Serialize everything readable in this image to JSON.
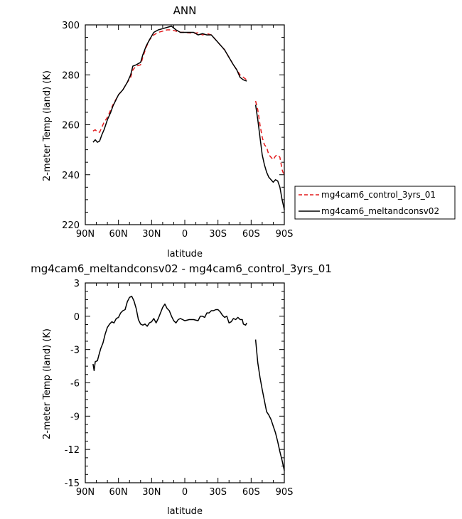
{
  "chart_data": [
    {
      "type": "line",
      "title": "ANN",
      "xlabel": "latitude",
      "ylabel": "2-meter Temp (land) (K)",
      "xlim": [
        90,
        -90
      ],
      "ylim": [
        220,
        300
      ],
      "xticks": [
        90,
        60,
        30,
        0,
        -30,
        -60,
        -90
      ],
      "xtick_labels": [
        "90N",
        "60N",
        "30N",
        "0",
        "30S",
        "60S",
        "90S"
      ],
      "yticks": [
        220,
        240,
        260,
        280,
        300
      ],
      "ytick_labels": [
        "220",
        "240",
        "260",
        "280",
        "300"
      ],
      "legend_position": "right",
      "series": [
        {
          "name": "mg4cam6_control_3yrs_01",
          "color": "#e31a1c",
          "dash": "dashed",
          "segments": [
            [
              [
                83,
                257.5
              ],
              [
                81,
                258
              ],
              [
                79,
                257
              ],
              [
                77,
                257
              ],
              [
                75,
                259
              ],
              [
                73,
                261
              ],
              [
                70,
                263
              ],
              [
                67,
                266
              ],
              [
                65,
                268
              ],
              [
                60,
                272
              ],
              [
                56,
                274
              ],
              [
                52,
                277
              ],
              [
                49,
                279
              ],
              [
                47,
                282
              ],
              [
                44,
                283.5
              ],
              [
                40,
                284
              ],
              [
                38,
                287
              ],
              [
                35,
                291
              ],
              [
                32,
                294
              ],
              [
                28,
                296
              ],
              [
                24,
                297
              ],
              [
                20,
                297.5
              ],
              [
                16,
                298
              ],
              [
                12,
                298
              ],
              [
                8,
                297.5
              ],
              [
                4,
                297
              ],
              [
                0,
                297
              ],
              [
                -4,
                296.8
              ],
              [
                -8,
                296.7
              ],
              [
                -12,
                296.8
              ],
              [
                -16,
                296
              ],
              [
                -20,
                296.5
              ],
              [
                -24,
                296
              ],
              [
                -28,
                294
              ],
              [
                -32,
                292
              ],
              [
                -36,
                290
              ],
              [
                -40,
                287
              ],
              [
                -44,
                284
              ],
              [
                -47,
                282
              ],
              [
                -50,
                280
              ],
              [
                -53,
                279
              ],
              [
                -56,
                278
              ]
            ],
            [
              [
                -64,
                269.5
              ],
              [
                -66,
                266
              ],
              [
                -68,
                260
              ],
              [
                -70,
                255
              ],
              [
                -72,
                252
              ],
              [
                -74,
                251
              ],
              [
                -76,
                248
              ],
              [
                -78,
                247
              ],
              [
                -80,
                246
              ],
              [
                -82,
                247.5
              ],
              [
                -84,
                248
              ],
              [
                -86,
                247
              ],
              [
                -88,
                242
              ],
              [
                -90,
                239.5
              ]
            ]
          ]
        },
        {
          "name": "mg4cam6_meltandconsv02",
          "color": "#000000",
          "dash": "solid",
          "segments": [
            [
              [
                83,
                253
              ],
              [
                81,
                254
              ],
              [
                79,
                253
              ],
              [
                77,
                253.5
              ],
              [
                75,
                256
              ],
              [
                73,
                258
              ],
              [
                70,
                262
              ],
              [
                67,
                265
              ],
              [
                65,
                267.5
              ],
              [
                60,
                272
              ],
              [
                56,
                274
              ],
              [
                52,
                277
              ],
              [
                49,
                280
              ],
              [
                47,
                283.5
              ],
              [
                44,
                284
              ],
              [
                40,
                285
              ],
              [
                38,
                288
              ],
              [
                35,
                291.5
              ],
              [
                32,
                294
              ],
              [
                28,
                297
              ],
              [
                24,
                298
              ],
              [
                20,
                298.5
              ],
              [
                16,
                299
              ],
              [
                12,
                299.5
              ],
              [
                8,
                298
              ],
              [
                4,
                297
              ],
              [
                0,
                297
              ],
              [
                -4,
                297
              ],
              [
                -8,
                297
              ],
              [
                -12,
                296
              ],
              [
                -16,
                296.5
              ],
              [
                -20,
                296
              ],
              [
                -24,
                296
              ],
              [
                -28,
                294
              ],
              [
                -32,
                292
              ],
              [
                -36,
                290
              ],
              [
                -40,
                287
              ],
              [
                -44,
                284
              ],
              [
                -47,
                282
              ],
              [
                -50,
                279
              ],
              [
                -53,
                278
              ],
              [
                -56,
                277.5
              ]
            ],
            [
              [
                -64,
                268
              ],
              [
                -66,
                262
              ],
              [
                -68,
                255
              ],
              [
                -70,
                248
              ],
              [
                -72,
                244
              ],
              [
                -74,
                241
              ],
              [
                -76,
                239
              ],
              [
                -78,
                238
              ],
              [
                -80,
                237
              ],
              [
                -82,
                238
              ],
              [
                -84,
                237.5
              ],
              [
                -86,
                235
              ],
              [
                -88,
                230
              ],
              [
                -90,
                226
              ]
            ]
          ]
        }
      ]
    },
    {
      "type": "line",
      "title": "mg4cam6_meltandconsv02 - mg4cam6_control_3yrs_01",
      "xlabel": "latitude",
      "ylabel": "2-meter Temp (land) (K)",
      "xlim": [
        90,
        -90
      ],
      "ylim": [
        -15,
        3
      ],
      "xticks": [
        90,
        60,
        30,
        0,
        -30,
        -60,
        -90
      ],
      "xtick_labels": [
        "90N",
        "60N",
        "30N",
        "0",
        "30S",
        "60S",
        "90S"
      ],
      "yticks": [
        3,
        0,
        -3,
        -6,
        -9,
        -12,
        -15
      ],
      "ytick_labels": [
        "3",
        "0",
        "-3",
        "-6",
        "-9",
        "-12",
        "-15"
      ],
      "series": [
        {
          "color": "#000000",
          "dash": "solid",
          "segments": [
            [
              [
                83,
                -4.3
              ],
              [
                82,
                -4.9
              ],
              [
                81,
                -4.1
              ],
              [
                79,
                -4.0
              ],
              [
                78,
                -3.6
              ],
              [
                76,
                -2.9
              ],
              [
                74,
                -2.4
              ],
              [
                72,
                -1.6
              ],
              [
                70,
                -1.0
              ],
              [
                68,
                -0.7
              ],
              [
                66,
                -0.5
              ],
              [
                64,
                -0.6
              ],
              [
                62,
                -0.2
              ],
              [
                60,
                -0.1
              ],
              [
                58,
                0.3
              ],
              [
                56,
                0.5
              ],
              [
                54,
                0.6
              ],
              [
                52,
                1.3
              ],
              [
                50,
                1.7
              ],
              [
                48,
                1.8
              ],
              [
                46,
                1.4
              ],
              [
                44,
                0.7
              ],
              [
                42,
                -0.3
              ],
              [
                40,
                -0.7
              ],
              [
                38,
                -0.8
              ],
              [
                36,
                -0.7
              ],
              [
                34,
                -0.9
              ],
              [
                32,
                -0.6
              ],
              [
                30,
                -0.5
              ],
              [
                28,
                -0.2
              ],
              [
                26,
                -0.6
              ],
              [
                24,
                -0.2
              ],
              [
                22,
                0.3
              ],
              [
                20,
                0.8
              ],
              [
                18,
                1.1
              ],
              [
                16,
                0.7
              ],
              [
                14,
                0.5
              ],
              [
                12,
                0.0
              ],
              [
                10,
                -0.4
              ],
              [
                8,
                -0.6
              ],
              [
                6,
                -0.3
              ],
              [
                4,
                -0.2
              ],
              [
                2,
                -0.3
              ],
              [
                0,
                -0.4
              ],
              [
                -4,
                -0.3
              ],
              [
                -8,
                -0.3
              ],
              [
                -12,
                -0.4
              ],
              [
                -14,
                0.0
              ],
              [
                -16,
                0.0
              ],
              [
                -18,
                -0.1
              ],
              [
                -20,
                0.3
              ],
              [
                -22,
                0.3
              ],
              [
                -24,
                0.5
              ],
              [
                -26,
                0.5
              ],
              [
                -28,
                0.6
              ],
              [
                -30,
                0.6
              ],
              [
                -32,
                0.4
              ],
              [
                -34,
                0.1
              ],
              [
                -36,
                -0.1
              ],
              [
                -38,
                0.0
              ],
              [
                -40,
                -0.6
              ],
              [
                -42,
                -0.5
              ],
              [
                -44,
                -0.2
              ],
              [
                -46,
                -0.3
              ],
              [
                -48,
                -0.1
              ],
              [
                -50,
                -0.3
              ],
              [
                -52,
                -0.3
              ],
              [
                -53,
                -0.7
              ],
              [
                -55,
                -0.8
              ],
              [
                -56,
                -0.6
              ]
            ],
            [
              [
                -64,
                -2.1
              ],
              [
                -66,
                -4.2
              ],
              [
                -68,
                -5.5
              ],
              [
                -70,
                -6.6
              ],
              [
                -72,
                -7.6
              ],
              [
                -74,
                -8.6
              ],
              [
                -76,
                -8.9
              ],
              [
                -78,
                -9.3
              ],
              [
                -80,
                -9.9
              ],
              [
                -82,
                -10.5
              ],
              [
                -84,
                -11.3
              ],
              [
                -86,
                -12.2
              ],
              [
                -88,
                -13.0
              ],
              [
                -90,
                -13.9
              ]
            ]
          ]
        }
      ]
    }
  ]
}
